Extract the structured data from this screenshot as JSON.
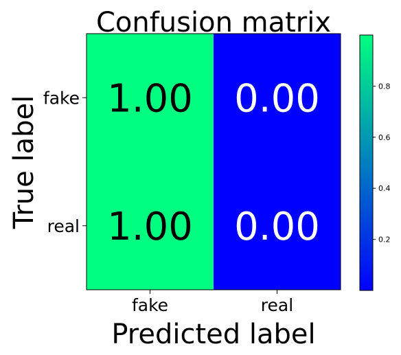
{
  "chart_data": {
    "type": "heatmap",
    "title": "Confusion matrix",
    "xlabel": "Predicted label",
    "ylabel": "True label",
    "x_categories": [
      "fake",
      "real"
    ],
    "y_categories": [
      "fake",
      "real"
    ],
    "values": [
      [
        1.0,
        0.0
      ],
      [
        1.0,
        0.0
      ]
    ],
    "value_labels": [
      [
        "1.00",
        "0.00"
      ],
      [
        "1.00",
        "0.00"
      ]
    ],
    "colormap": {
      "low": "#0000ff",
      "high": "#00ff80",
      "name": "winter"
    },
    "colorbar": {
      "range": [
        0.0,
        1.0
      ],
      "ticks": [
        "0.2",
        "0.4",
        "0.6",
        "0.8"
      ]
    },
    "text_colors": {
      "on_high": "#000000",
      "on_low": "#ffffff"
    }
  }
}
